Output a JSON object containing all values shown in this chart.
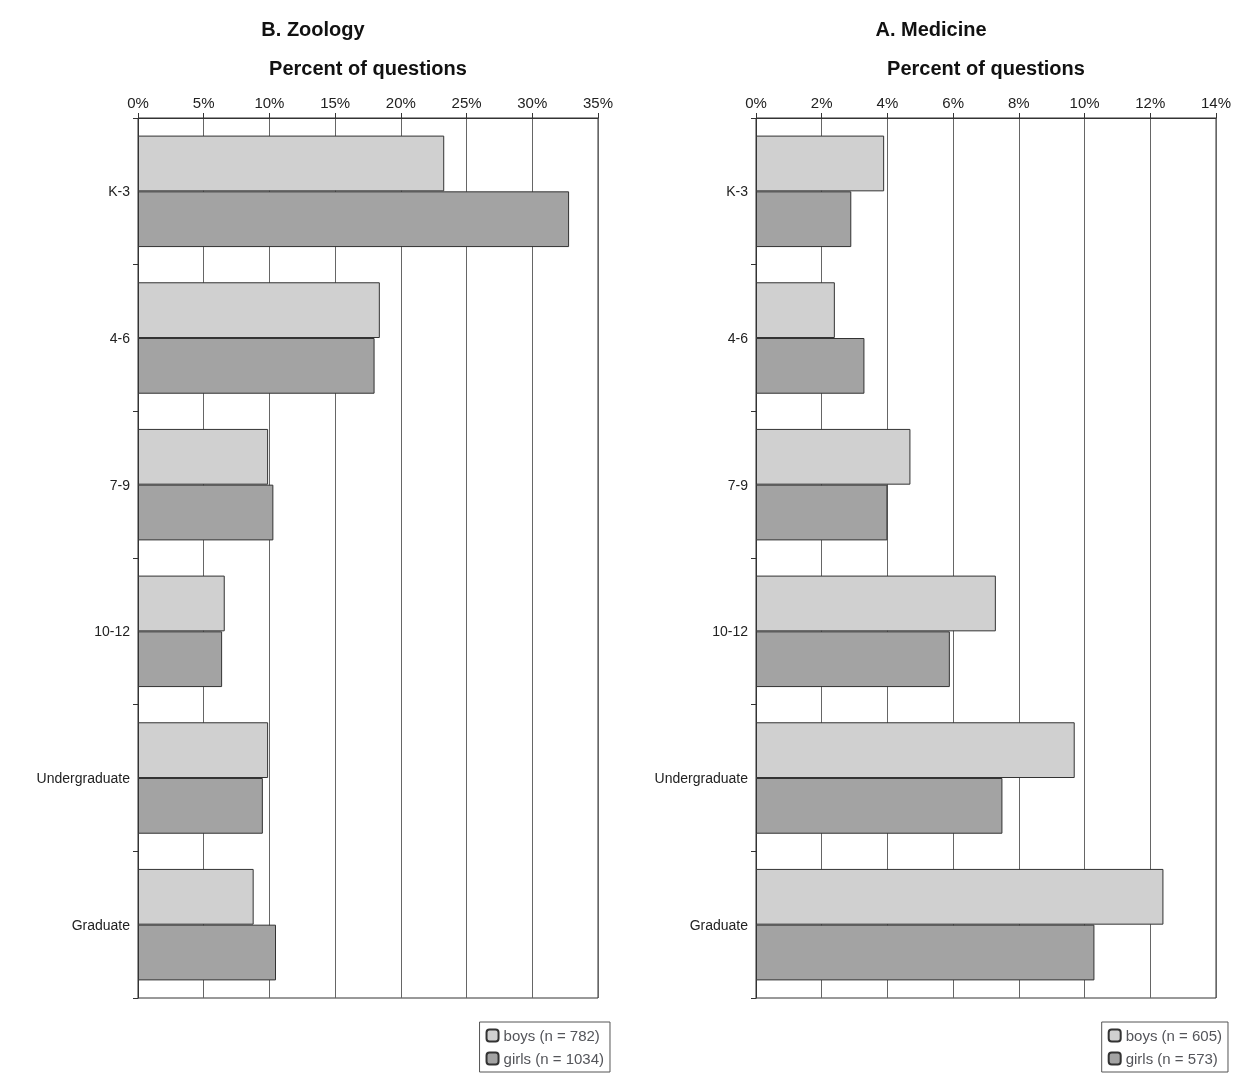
{
  "chart_data": [
    {
      "type": "bar",
      "orientation": "horizontal",
      "title": "B. Zoology",
      "xlabel": "Percent of questions",
      "categories": [
        "K-3",
        "4-6",
        "7-9",
        "10-12",
        "Undergraduate",
        "Graduate"
      ],
      "series": [
        {
          "name": "boys (n = 782)",
          "color": "#d0d0d0",
          "values": [
            23.3,
            18.4,
            9.9,
            6.6,
            9.9,
            8.8
          ]
        },
        {
          "name": "girls (n = 1034)",
          "color": "#a3a3a3",
          "values": [
            32.8,
            18.0,
            10.3,
            6.4,
            9.5,
            10.5
          ]
        }
      ],
      "xlim": [
        0,
        35
      ],
      "xticks": [
        {
          "value": 0,
          "label": "0%"
        },
        {
          "value": 5,
          "label": "5%"
        },
        {
          "value": 10,
          "label": "10%"
        },
        {
          "value": 15,
          "label": "15%"
        },
        {
          "value": 20,
          "label": "20%"
        },
        {
          "value": 25,
          "label": "25%"
        },
        {
          "value": 30,
          "label": "30%"
        },
        {
          "value": 35,
          "label": "35%"
        }
      ],
      "grid": "x",
      "legend": "bottom right"
    },
    {
      "type": "bar",
      "orientation": "horizontal",
      "title": "A. Medicine",
      "xlabel": "Percent of questions",
      "categories": [
        "K-3",
        "4-6",
        "7-9",
        "10-12",
        "Undergraduate",
        "Graduate"
      ],
      "series": [
        {
          "name": "boys (n = 605)",
          "color": "#d0d0d0",
          "values": [
            3.9,
            2.4,
            4.7,
            7.3,
            9.7,
            12.4
          ]
        },
        {
          "name": "girls (n = 573)",
          "color": "#a3a3a3",
          "values": [
            2.9,
            3.3,
            4.0,
            5.9,
            7.5,
            10.3
          ]
        }
      ],
      "xlim": [
        0,
        14
      ],
      "xticks": [
        {
          "value": 0,
          "label": "0%"
        },
        {
          "value": 2,
          "label": "2%"
        },
        {
          "value": 4,
          "label": "4%"
        },
        {
          "value": 6,
          "label": "6%"
        },
        {
          "value": 8,
          "label": "8%"
        },
        {
          "value": 10,
          "label": "10%"
        },
        {
          "value": 12,
          "label": "12%"
        },
        {
          "value": 14,
          "label": "14%"
        }
      ],
      "grid": "x",
      "legend": "bottom right"
    }
  ]
}
